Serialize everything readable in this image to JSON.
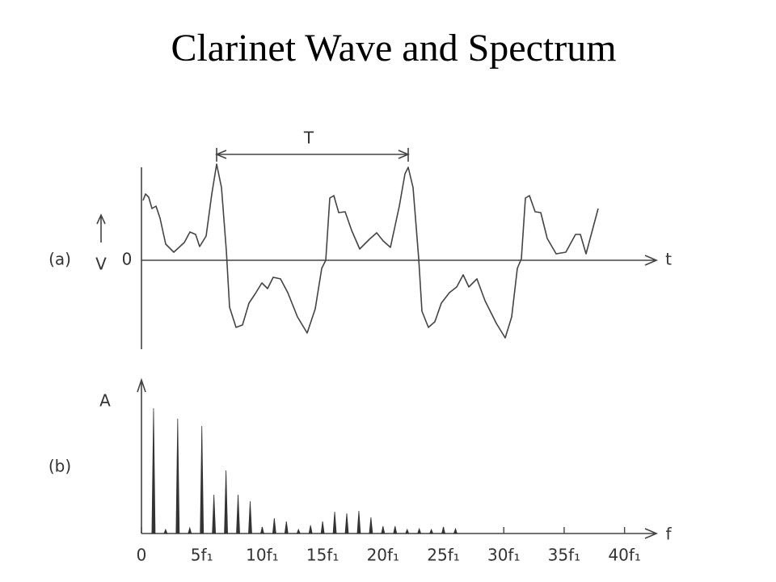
{
  "title": "Clarinet Wave and Spectrum",
  "chart_data": [
    {
      "type": "wave",
      "panel_label": "(a)",
      "y_label": "V",
      "zero_label": "0",
      "x_label": "t",
      "period_label": "T"
    },
    {
      "type": "stem",
      "panel_label": "(b)",
      "y_label": "A",
      "x_label": "f",
      "x": [
        1,
        2,
        3,
        4,
        5,
        6,
        7,
        8,
        9,
        10,
        11,
        12,
        13,
        14,
        15,
        16,
        17,
        18,
        19,
        20,
        21,
        22,
        23,
        24,
        25,
        26
      ],
      "values": [
        155,
        5,
        142,
        7,
        133,
        48,
        78,
        48,
        40,
        8,
        19,
        15,
        5,
        10,
        15,
        27,
        25,
        28,
        20,
        9,
        9,
        5,
        6,
        5,
        8,
        6
      ],
      "xlim": [
        0,
        42.5
      ],
      "ylim": [
        0,
        200
      ],
      "xticks": [
        0,
        {
          "value": 5,
          "label": "5f₁"
        },
        {
          "value": 10,
          "label": "10f₁"
        },
        {
          "value": 15,
          "label": "15f₁"
        },
        {
          "value": 20,
          "label": "20f₁"
        },
        {
          "value": 25,
          "label": "25f₁"
        },
        {
          "value": 30,
          "label": "30f₁"
        },
        {
          "value": 35,
          "label": "35f₁"
        },
        {
          "value": 40,
          "label": "40f₁"
        }
      ]
    }
  ]
}
